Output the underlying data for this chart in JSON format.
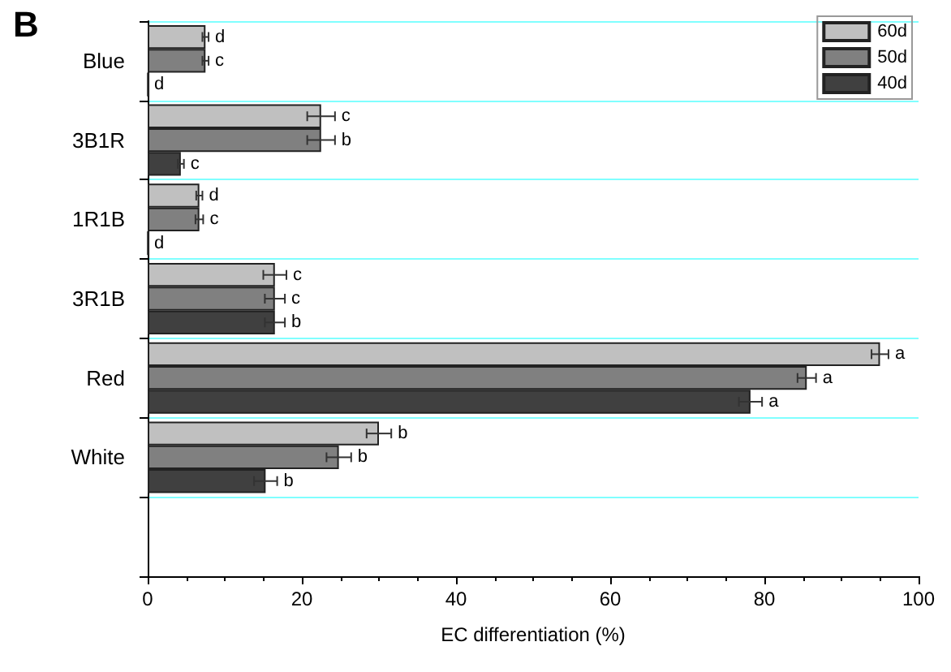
{
  "chart_data": {
    "type": "bar",
    "orientation": "horizontal",
    "xlabel": "EC differentiation (%)",
    "annotations": [
      "B"
    ],
    "categories": [
      "Blue",
      "3B1R",
      "1R1B",
      "3R1B",
      "Red",
      "White",
      null
    ],
    "series": [
      {
        "name": "60d",
        "color": "#c0c0c0",
        "values": [
          7.5,
          22.5,
          6.7,
          16.5,
          95,
          30,
          null
        ],
        "errors": [
          0.4,
          1.8,
          0.4,
          1.5,
          1.1,
          1.6,
          null
        ],
        "value_labels": [
          "d",
          "c",
          "d",
          "c",
          "a",
          "b",
          null
        ]
      },
      {
        "name": "50d",
        "color": "#808080",
        "values": [
          7.5,
          22.5,
          6.7,
          16.5,
          85.5,
          24.8,
          null
        ],
        "errors": [
          0.4,
          1.8,
          0.5,
          1.3,
          1.2,
          1.6,
          null
        ],
        "value_labels": [
          "c",
          "b",
          "c",
          "c",
          "a",
          "b",
          null
        ]
      },
      {
        "name": "40d",
        "color": "#404040",
        "values": [
          0,
          4.3,
          0,
          16.5,
          78.2,
          15.3,
          null
        ],
        "errors": [
          null,
          0.4,
          null,
          1.3,
          1.5,
          1.5,
          null
        ],
        "value_labels": [
          "d",
          "c",
          "d",
          "b",
          "a",
          "b",
          null
        ]
      }
    ],
    "xlim": [
      0,
      100
    ],
    "xticks": [
      0,
      20,
      40,
      60,
      80,
      100
    ],
    "grid": "y",
    "legend": "top right"
  }
}
